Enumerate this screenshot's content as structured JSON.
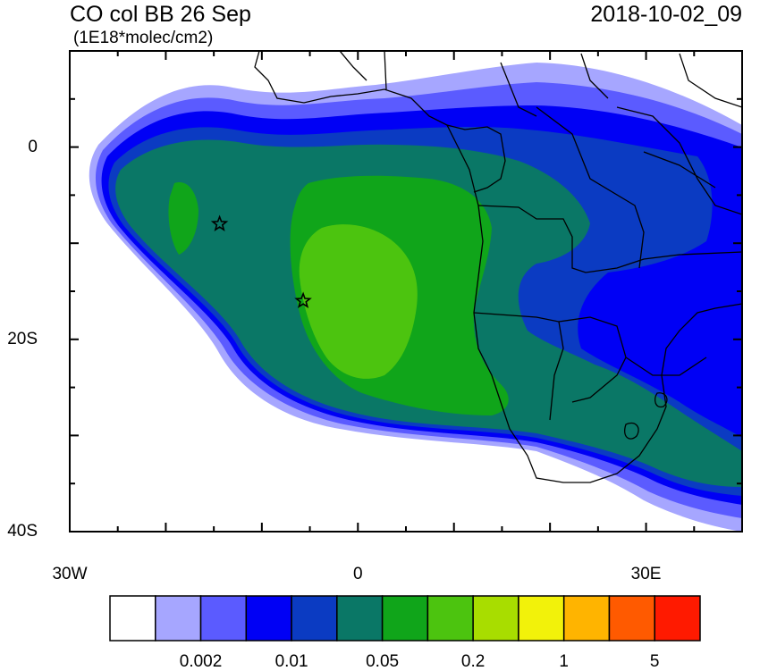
{
  "header": {
    "title_left": "CO col BB 26 Sep",
    "title_right": "2018-10-02_09",
    "units": "(1E18*molec/cm2)"
  },
  "map": {
    "lon_range": [
      -30,
      40
    ],
    "lat_range": [
      -40,
      10
    ],
    "lon_ticks": [
      {
        "value": -30,
        "label": "30W"
      },
      {
        "value": 0,
        "label": "0"
      },
      {
        "value": 30,
        "label": "30E"
      }
    ],
    "lat_ticks": [
      {
        "value": 0,
        "label": "0"
      },
      {
        "value": -20,
        "label": "20S"
      },
      {
        "value": -40,
        "label": "40S"
      }
    ],
    "markers": [
      {
        "name": "star-marker",
        "lon": -14.4,
        "lat": -8.0
      },
      {
        "name": "star-marker",
        "lon": -5.7,
        "lat": -16.0
      }
    ]
  },
  "colorbar": {
    "colors": [
      "#ffffff",
      "#a6a6ff",
      "#5b5bff",
      "#0000f5",
      "#0b3bc2",
      "#0a7766",
      "#10a51a",
      "#4cc40f",
      "#a8dd00",
      "#f2f20a",
      "#ffb400",
      "#ff5a00",
      "#ff1a00"
    ],
    "labels": [
      {
        "text": "0.002",
        "boundary": 2
      },
      {
        "text": "0.01",
        "boundary": 4
      },
      {
        "text": "0.05",
        "boundary": 6
      },
      {
        "text": "0.2",
        "boundary": 8
      },
      {
        "text": "1",
        "boundary": 10
      },
      {
        "text": "5",
        "boundary": 12
      }
    ]
  }
}
